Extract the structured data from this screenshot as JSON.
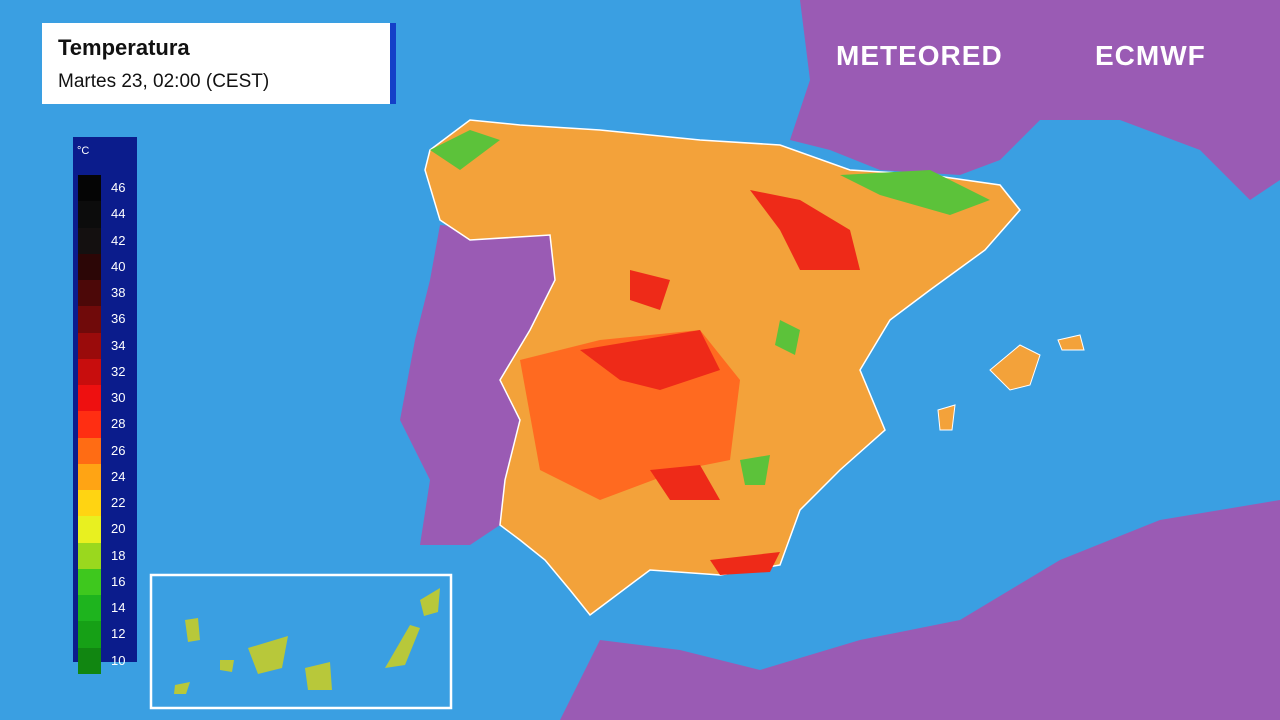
{
  "header": {
    "title": "Temperatura",
    "subtitle": "Martes 23, 02:00 (CEST)"
  },
  "logos": {
    "meteored": "METEORED",
    "ecmwf": "ECMWF"
  },
  "legend": {
    "unit": "°C",
    "ticks": [
      46,
      44,
      42,
      40,
      38,
      36,
      34,
      32,
      30,
      28,
      26,
      24,
      22,
      20,
      18,
      16,
      14,
      12,
      10
    ],
    "colors": [
      "#050505",
      "#0c0c0c",
      "#141010",
      "#2c0606",
      "#4c0808",
      "#700a0a",
      "#9a0b0b",
      "#c80d0d",
      "#ee1010",
      "#ff2e12",
      "#ff6c14",
      "#ffa414",
      "#ffd412",
      "#e8f020",
      "#9ad81e",
      "#3ec81e",
      "#1eb41e",
      "#16a016",
      "#118611"
    ]
  }
}
